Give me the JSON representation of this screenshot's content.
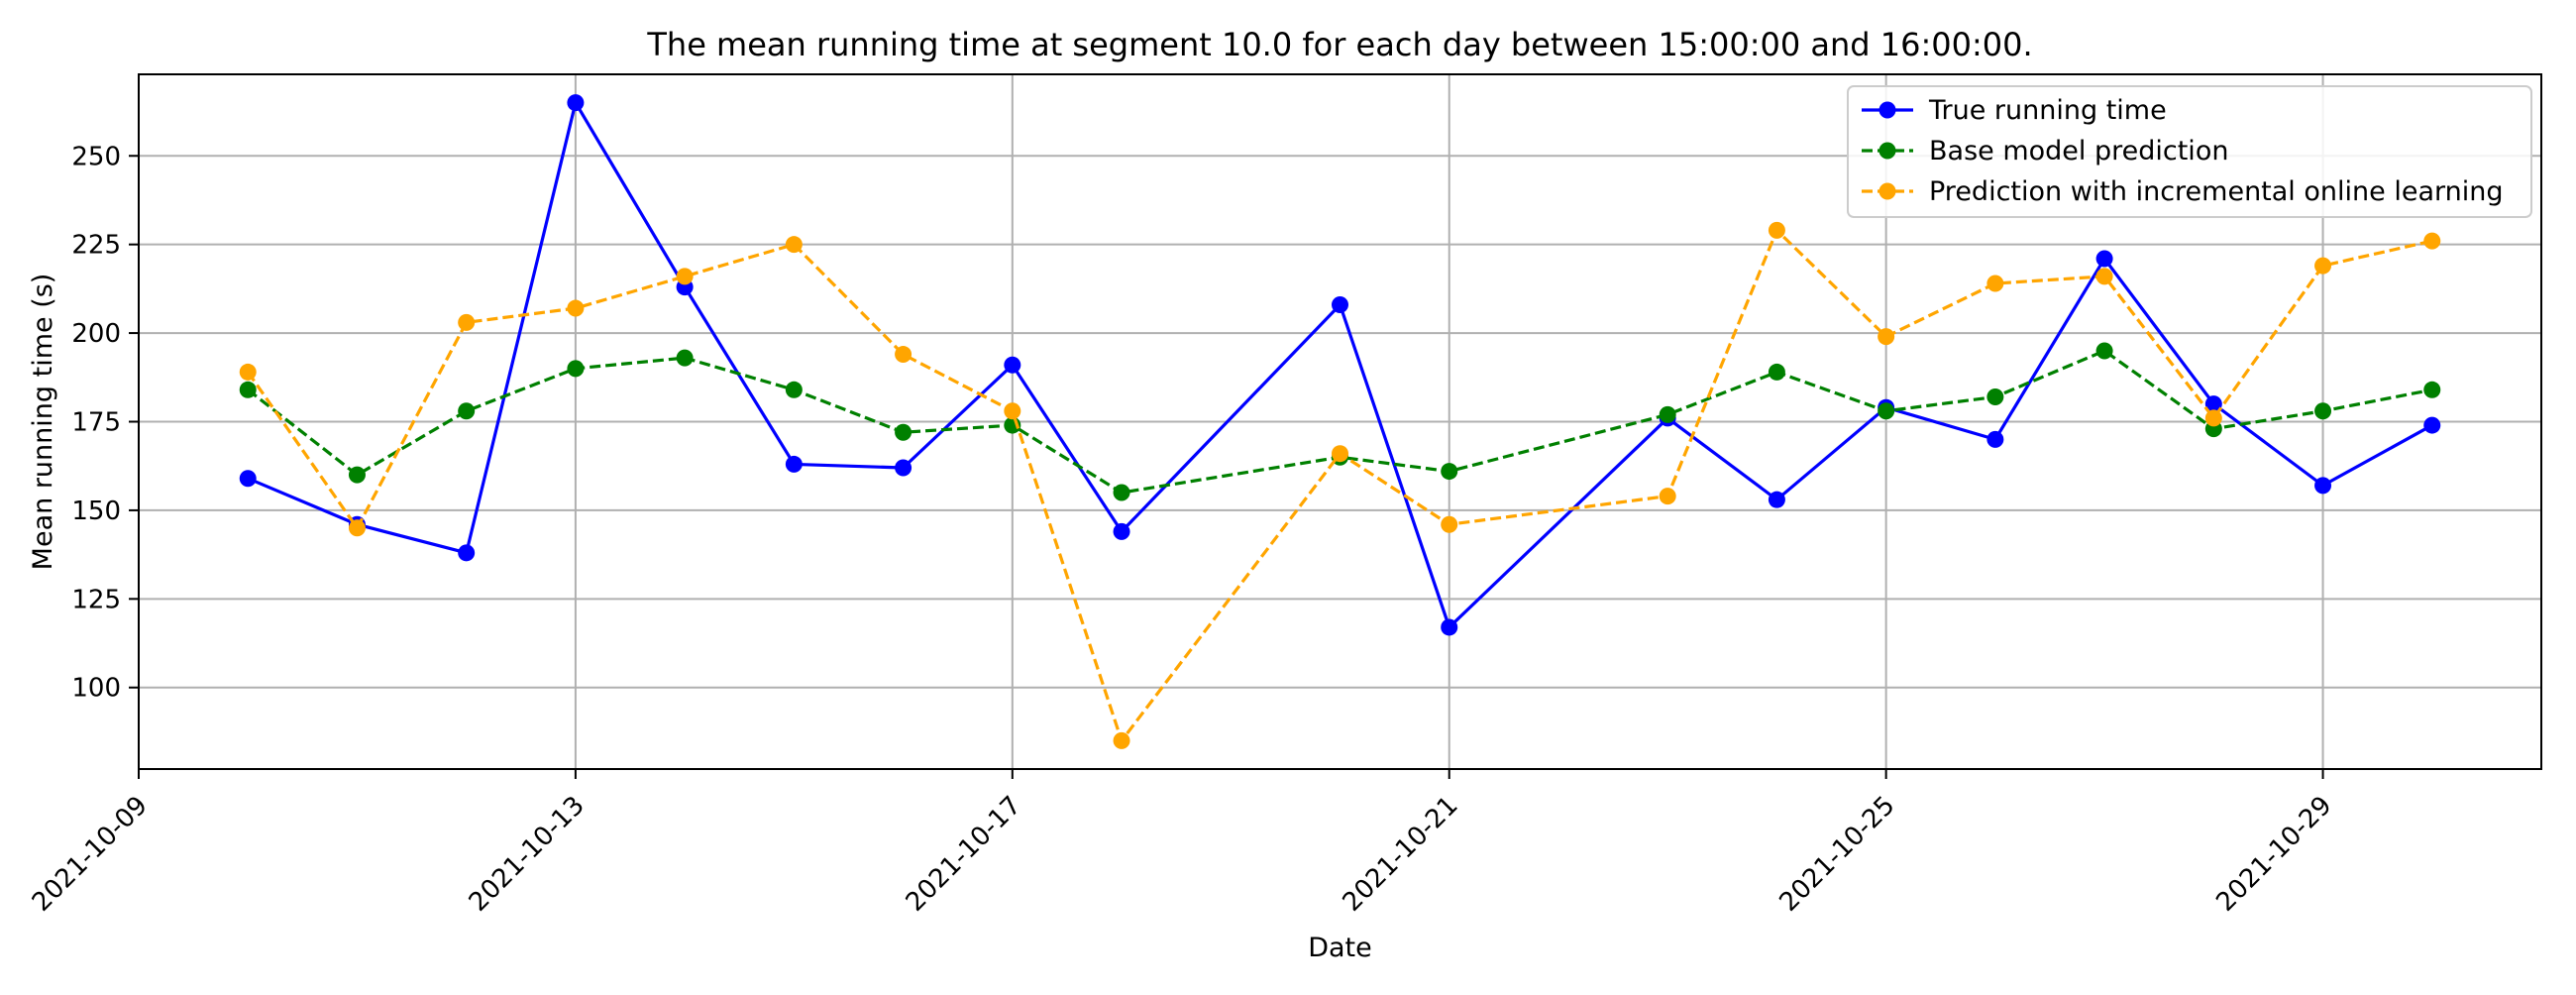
{
  "chart_data": {
    "type": "line",
    "title": "The mean running time at segment 10.0 for each day between 15:00:00 and 16:00:00.",
    "xlabel": "Date",
    "ylabel": "Mean running time (s)",
    "x_axis_type": "date",
    "xlim": [
      "2021-10-09",
      "2021-10-31"
    ],
    "ylim": [
      77,
      273
    ],
    "x_ticks": [
      "2021-10-09",
      "2021-10-13",
      "2021-10-17",
      "2021-10-21",
      "2021-10-25",
      "2021-10-29"
    ],
    "y_ticks": [
      100,
      125,
      150,
      175,
      200,
      225,
      250
    ],
    "grid": true,
    "legend_position": "top-right",
    "series": [
      {
        "name": "True running time",
        "color": "#0000ff",
        "line_style": "solid",
        "marker": "circle",
        "points": [
          {
            "x": "2021-10-10",
            "y": 159
          },
          {
            "x": "2021-10-11",
            "y": 146
          },
          {
            "x": "2021-10-12",
            "y": 138
          },
          {
            "x": "2021-10-13",
            "y": 265
          },
          {
            "x": "2021-10-14",
            "y": 213
          },
          {
            "x": "2021-10-15",
            "y": 163
          },
          {
            "x": "2021-10-16",
            "y": 162
          },
          {
            "x": "2021-10-17",
            "y": 191
          },
          {
            "x": "2021-10-18",
            "y": 144
          },
          {
            "x": "2021-10-20",
            "y": 208
          },
          {
            "x": "2021-10-21",
            "y": 117
          },
          {
            "x": "2021-10-23",
            "y": 176
          },
          {
            "x": "2021-10-24",
            "y": 153
          },
          {
            "x": "2021-10-25",
            "y": 179
          },
          {
            "x": "2021-10-26",
            "y": 170
          },
          {
            "x": "2021-10-27",
            "y": 221
          },
          {
            "x": "2021-10-28",
            "y": 180
          },
          {
            "x": "2021-10-29",
            "y": 157
          },
          {
            "x": "2021-10-30",
            "y": 174
          }
        ]
      },
      {
        "name": "Base model prediction",
        "color": "#008000",
        "line_style": "dashed",
        "marker": "circle",
        "points": [
          {
            "x": "2021-10-10",
            "y": 184
          },
          {
            "x": "2021-10-11",
            "y": 160
          },
          {
            "x": "2021-10-12",
            "y": 178
          },
          {
            "x": "2021-10-13",
            "y": 190
          },
          {
            "x": "2021-10-14",
            "y": 193
          },
          {
            "x": "2021-10-15",
            "y": 184
          },
          {
            "x": "2021-10-16",
            "y": 172
          },
          {
            "x": "2021-10-17",
            "y": 174
          },
          {
            "x": "2021-10-18",
            "y": 155
          },
          {
            "x": "2021-10-20",
            "y": 165
          },
          {
            "x": "2021-10-21",
            "y": 161
          },
          {
            "x": "2021-10-23",
            "y": 177
          },
          {
            "x": "2021-10-24",
            "y": 189
          },
          {
            "x": "2021-10-25",
            "y": 178
          },
          {
            "x": "2021-10-26",
            "y": 182
          },
          {
            "x": "2021-10-27",
            "y": 195
          },
          {
            "x": "2021-10-28",
            "y": 173
          },
          {
            "x": "2021-10-29",
            "y": 178
          },
          {
            "x": "2021-10-30",
            "y": 184
          }
        ]
      },
      {
        "name": "Prediction with incremental online learning",
        "color": "#ffa500",
        "line_style": "dashed",
        "marker": "circle",
        "points": [
          {
            "x": "2021-10-10",
            "y": 189
          },
          {
            "x": "2021-10-11",
            "y": 145
          },
          {
            "x": "2021-10-12",
            "y": 203
          },
          {
            "x": "2021-10-13",
            "y": 207
          },
          {
            "x": "2021-10-14",
            "y": 216
          },
          {
            "x": "2021-10-15",
            "y": 225
          },
          {
            "x": "2021-10-16",
            "y": 194
          },
          {
            "x": "2021-10-17",
            "y": 178
          },
          {
            "x": "2021-10-18",
            "y": 85
          },
          {
            "x": "2021-10-20",
            "y": 166
          },
          {
            "x": "2021-10-21",
            "y": 146
          },
          {
            "x": "2021-10-23",
            "y": 154
          },
          {
            "x": "2021-10-24",
            "y": 229
          },
          {
            "x": "2021-10-25",
            "y": 199
          },
          {
            "x": "2021-10-26",
            "y": 214
          },
          {
            "x": "2021-10-27",
            "y": 216
          },
          {
            "x": "2021-10-28",
            "y": 176
          },
          {
            "x": "2021-10-29",
            "y": 219
          },
          {
            "x": "2021-10-30",
            "y": 226
          }
        ]
      }
    ]
  }
}
